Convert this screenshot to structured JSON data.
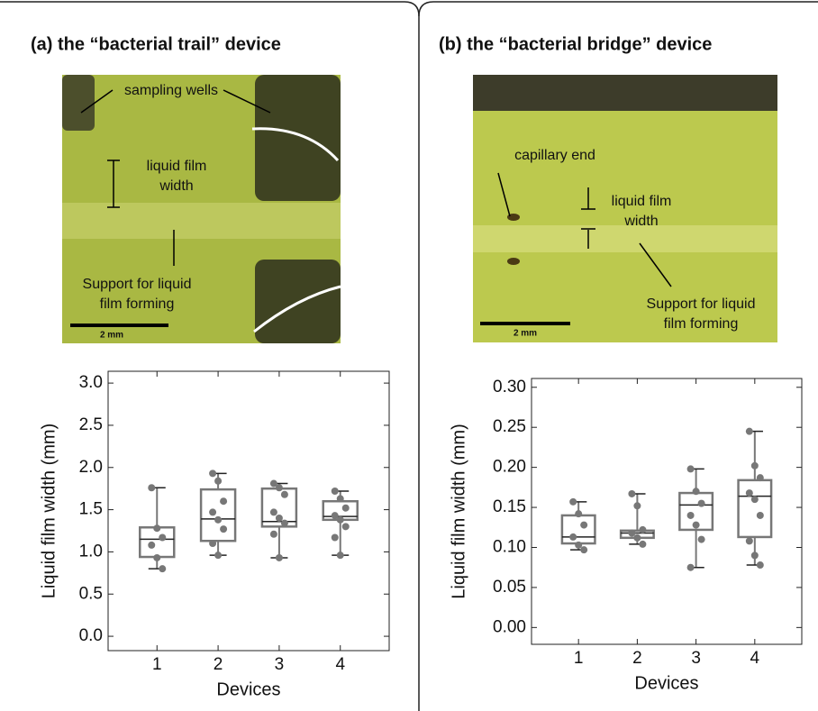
{
  "panels": [
    {
      "title": "(a)  the “bacterial trail” device",
      "photo_labels": [
        "sampling wells",
        "liquid film",
        "width",
        "Support for liquid",
        "film forming",
        "2 mm"
      ]
    },
    {
      "title": "(b)  the “bacterial bridge” device",
      "photo_labels": [
        "capillary end",
        "liquid film",
        "width",
        "Support for liquid",
        "film forming",
        "2 mm"
      ]
    }
  ],
  "chart_data": [
    {
      "type": "box",
      "xlabel": "Devices",
      "ylabel": "Liquid film width (mm)",
      "color": "#777777",
      "categories": [
        "1",
        "2",
        "3",
        "4"
      ],
      "whisker_low": [
        0.8,
        0.96,
        0.93,
        0.96
      ],
      "q1": [
        0.94,
        1.13,
        1.3,
        1.38
      ],
      "median": [
        1.15,
        1.39,
        1.36,
        1.42
      ],
      "q3": [
        1.29,
        1.74,
        1.75,
        1.6
      ],
      "whisker_high": [
        1.76,
        1.93,
        1.81,
        1.72
      ],
      "points": [
        [
          1.76,
          1.28,
          1.17,
          1.08,
          0.93,
          0.8
        ],
        [
          1.93,
          1.84,
          1.6,
          1.47,
          1.38,
          1.27,
          1.1,
          0.96
        ],
        [
          1.81,
          1.76,
          1.68,
          1.47,
          1.4,
          1.34,
          1.21,
          0.93
        ],
        [
          1.72,
          1.63,
          1.52,
          1.43,
          1.38,
          1.3,
          1.17,
          0.96
        ]
      ],
      "ylim": [
        -0.17,
        3.14
      ],
      "yticks": [
        {
          "value": 0,
          "label": "0.0"
        },
        0.5,
        {
          "value": 1,
          "label": "1.0"
        },
        1.5,
        {
          "value": 2,
          "label": "2.0"
        },
        2.5,
        {
          "value": 3,
          "label": "3.0"
        }
      ]
    },
    {
      "type": "box",
      "xlabel": "Devices",
      "ylabel": "Liquid film width (mm)",
      "color": "#777777",
      "categories": [
        "1",
        "2",
        "3",
        "4"
      ],
      "whisker_low": [
        0.097,
        0.104,
        0.075,
        0.078
      ],
      "q1": [
        0.105,
        0.112,
        0.122,
        0.113
      ],
      "median": [
        0.113,
        0.118,
        0.153,
        0.164
      ],
      "q3": [
        0.14,
        0.121,
        0.168,
        0.184
      ],
      "whisker_high": [
        0.157,
        0.167,
        0.198,
        0.245
      ],
      "points": [
        [
          0.157,
          0.142,
          0.128,
          0.113,
          0.103,
          0.097
        ],
        [
          0.167,
          0.152,
          0.122,
          0.118,
          0.112,
          0.104
        ],
        [
          0.198,
          0.17,
          0.155,
          0.14,
          0.128,
          0.11,
          0.075
        ],
        [
          0.245,
          0.202,
          0.187,
          0.168,
          0.16,
          0.14,
          0.108,
          0.09,
          0.078
        ]
      ],
      "ylim": [
        -0.021,
        0.311
      ],
      "yticks": [
        {
          "value": 0,
          "label": "0.00"
        },
        0.05,
        {
          "value": 0.1,
          "label": "0.10"
        },
        0.15,
        {
          "value": 0.2,
          "label": "0.20"
        },
        0.25,
        {
          "value": 0.3,
          "label": "0.30"
        }
      ]
    }
  ]
}
